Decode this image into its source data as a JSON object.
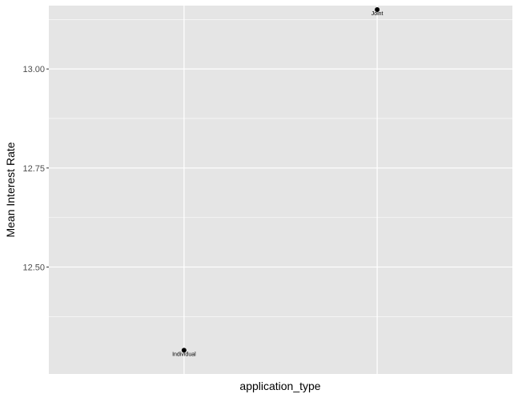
{
  "chart_data": {
    "type": "scatter",
    "title": "",
    "xlabel": "application_type",
    "ylabel": "Mean Interest Rate",
    "categories": [
      "Individual",
      "Joint"
    ],
    "values": [
      12.29,
      13.15
    ],
    "point_labels": [
      "Individual",
      "Joint"
    ],
    "ylim": [
      12.23,
      13.16
    ],
    "yticks": [
      12.5,
      12.75,
      13.0
    ],
    "ytick_labels": [
      "12.50",
      "12.75",
      "13.00"
    ],
    "grid": true,
    "legend": "none",
    "panel_color": "#e5e5e5",
    "grid_color": "#ffffff",
    "point_color": "#000000"
  }
}
